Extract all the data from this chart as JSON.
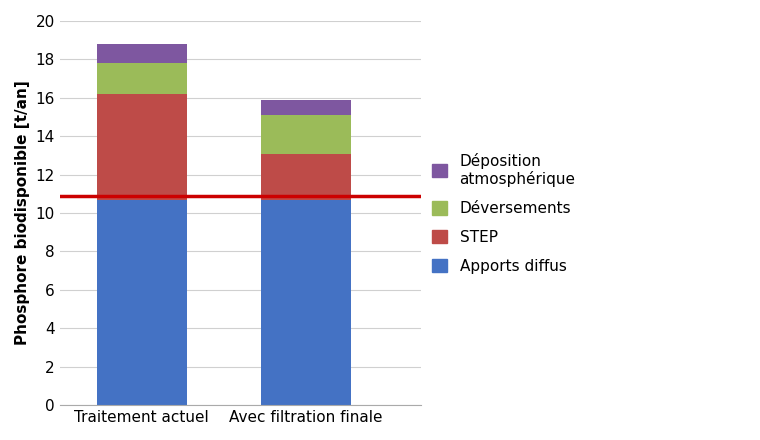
{
  "categories": [
    "Traitement actuel",
    "Avec filtration finale"
  ],
  "apports_diffus": [
    10.7,
    10.7
  ],
  "step": [
    5.5,
    2.4
  ],
  "deversements": [
    1.6,
    2.0
  ],
  "deposition_atm": [
    1.0,
    0.8
  ],
  "hline_y": 10.9,
  "ylim": [
    0,
    20
  ],
  "yticks": [
    0,
    2,
    4,
    6,
    8,
    10,
    12,
    14,
    16,
    18,
    20
  ],
  "ylabel": "Phosphore biodisponible [t/an]",
  "color_apports": "#4472C4",
  "color_step": "#BE4B48",
  "color_deversements": "#9BBB59",
  "color_deposition": "#7E57A0",
  "color_hline": "#CC0000",
  "bar_width": 0.55,
  "x_positions": [
    0.0,
    1.0
  ],
  "figsize": [
    7.6,
    4.4
  ],
  "dpi": 100,
  "bg_color": "#FFFFFF",
  "grid_color": "#D0D0D0",
  "hline_linewidth": 2.5,
  "xlabel_fontsize": 11,
  "ylabel_fontsize": 11,
  "tick_fontsize": 11,
  "legend_fontsize": 11
}
